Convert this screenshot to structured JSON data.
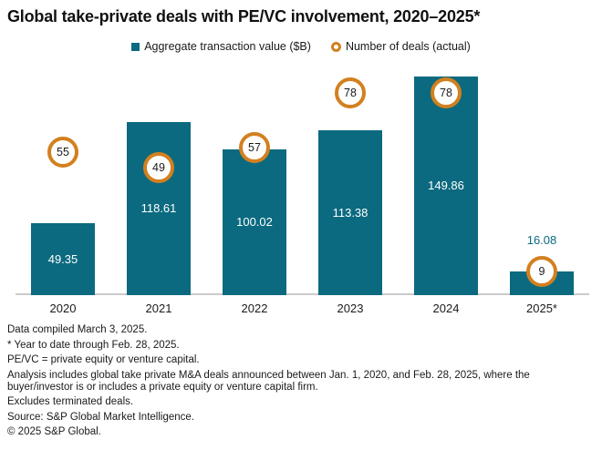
{
  "title": "Global take-private deals with PE/VC involvement, 2020–2025*",
  "legend": {
    "items": [
      {
        "label": "Aggregate transaction value ($B)",
        "marker": "square"
      },
      {
        "label": "Number of deals (actual)",
        "marker": "ring"
      }
    ]
  },
  "chart_data": {
    "type": "bar",
    "title": "Global take-private deals with PE/VC involvement, 2020–2025*",
    "categories": [
      "2020",
      "2021",
      "2022",
      "2023",
      "2024",
      "2025*"
    ],
    "series": [
      {
        "name": "Aggregate transaction value ($B)",
        "type": "bar",
        "values": [
          49.35,
          118.61,
          100.02,
          113.38,
          149.86,
          16.08
        ]
      },
      {
        "name": "Number of deals (actual)",
        "type": "point-badge",
        "values": [
          55,
          49,
          57,
          78,
          78,
          9
        ]
      }
    ],
    "xlabel": "",
    "ylabel": "",
    "value_axis": {
      "visible": false,
      "range": [
        0,
        160
      ]
    },
    "deals_axis": {
      "visible": false,
      "range": [
        0,
        110
      ]
    },
    "grid": false,
    "legend_position": "top",
    "data_labels_shown": true
  },
  "footnotes": [
    "Data compiled March 3, 2025.",
    "* Year to date through Feb. 28, 2025.",
    "PE/VC = private equity or venture capital.",
    "Analysis includes global take private M&A deals announced between Jan. 1, 2020, and Feb. 28, 2025, where the buyer/investor is or includes a private equity or venture capital firm.",
    "Excludes terminated deals.",
    "Source: S&P Global Market Intelligence.",
    "© 2025 S&P Global."
  ],
  "colors": {
    "teal": "#0B6A80",
    "orange": "#D3801F",
    "axis": "#CBCBCB",
    "text": "#1A1A1A"
  }
}
